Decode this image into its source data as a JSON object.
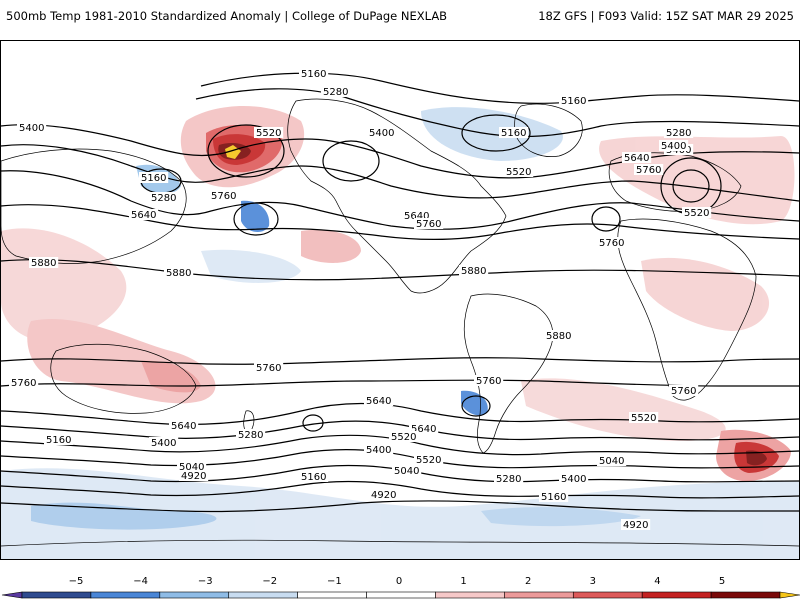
{
  "header": {
    "title_left": "500mb Temp 1981-2010 Standardized Anomaly | College of DuPage NEXLAB",
    "title_right": "18Z GFS | F093 Valid: 15Z SAT MAR 29 2025"
  },
  "map": {
    "contour_labels": [
      "5160",
      "5280",
      "5160",
      "5400",
      "5400",
      "5520",
      "5160",
      "5400",
      "5280",
      "5640",
      "5400",
      "5760",
      "5160",
      "5280",
      "5640",
      "5760",
      "5520",
      "5640",
      "5760",
      "5520",
      "5760",
      "5880",
      "5880",
      "5880",
      "5880",
      "5760",
      "5760",
      "5760",
      "5760",
      "5640",
      "5640",
      "5520",
      "5280",
      "5640",
      "5520",
      "5400",
      "5160",
      "5400",
      "5520",
      "5280",
      "5400",
      "5160",
      "5040",
      "5040",
      "4920",
      "5160",
      "5040",
      "4920",
      "4920"
    ],
    "colors": {
      "frame": "#000000",
      "contour": "#000000",
      "coast": "#000000",
      "neg5": "#5a3aa0",
      "neg4": "#2f4b8f",
      "neg3": "#4a86d6",
      "neg2": "#8fbce6",
      "neg1": "#c8dcf0",
      "pos1": "#f5c8c8",
      "pos2": "#ec9a9a",
      "pos3": "#dd5a5a",
      "pos4": "#c42222",
      "pos5": "#7a0a0a",
      "over": "#f5c518"
    }
  },
  "legend": {
    "ticks": [
      "−5",
      "−4",
      "−3",
      "−2",
      "−1",
      "0",
      "1",
      "2",
      "3",
      "4",
      "5"
    ],
    "colors": [
      "#5a3aa0",
      "#2f4b8f",
      "#4a86d6",
      "#8fbce6",
      "#c8dcf0",
      "#ffffff",
      "#ffffff",
      "#f5c8c8",
      "#ec9a9a",
      "#dd5a5a",
      "#c42222",
      "#7a0a0a",
      "#f5c518"
    ]
  }
}
